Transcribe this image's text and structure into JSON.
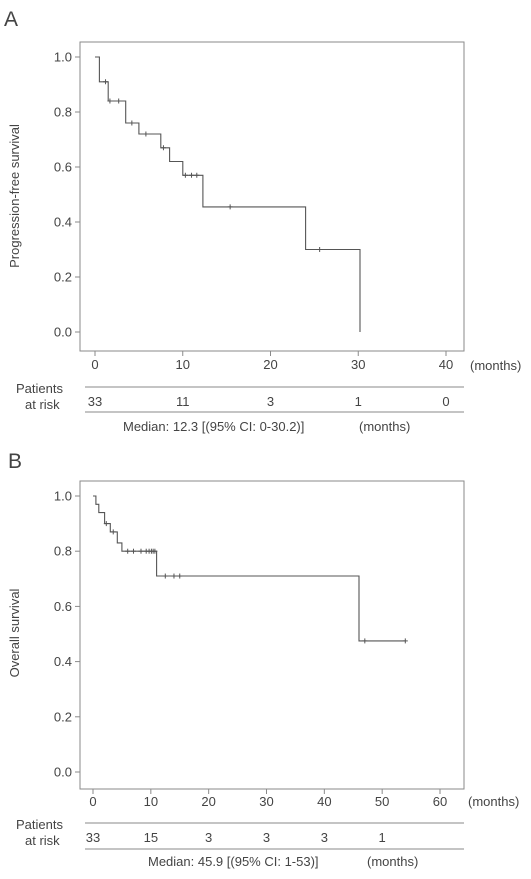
{
  "chart_data": [
    {
      "type": "line",
      "panel_label": "A",
      "ylabel": "Progression-free survival",
      "xunit": "(months)",
      "xlim": [
        0,
        40
      ],
      "ylim": [
        0,
        1
      ],
      "xticks": [
        "0",
        "10",
        "20",
        "30",
        "40"
      ],
      "yticks": [
        "0.0",
        "0.2",
        "0.4",
        "0.6",
        "0.8",
        "1.0"
      ],
      "grid": false,
      "series": [
        {
          "curve": [
            [
              0,
              1.0
            ],
            [
              0.5,
              1.0
            ],
            [
              0.5,
              0.91
            ],
            [
              1.5,
              0.91
            ],
            [
              1.5,
              0.84
            ],
            [
              3.5,
              0.84
            ],
            [
              3.5,
              0.76
            ],
            [
              5,
              0.76
            ],
            [
              5,
              0.72
            ],
            [
              7.5,
              0.72
            ],
            [
              7.5,
              0.67
            ],
            [
              8.5,
              0.67
            ],
            [
              8.5,
              0.62
            ],
            [
              10,
              0.62
            ],
            [
              10,
              0.57
            ],
            [
              12.3,
              0.57
            ],
            [
              12.3,
              0.455
            ],
            [
              24,
              0.455
            ],
            [
              24,
              0.3
            ],
            [
              30.2,
              0.3
            ],
            [
              30.2,
              0.0
            ]
          ],
          "censored": [
            [
              1.2,
              0.91
            ],
            [
              1.7,
              0.84
            ],
            [
              2.7,
              0.84
            ],
            [
              4.2,
              0.76
            ],
            [
              5.8,
              0.72
            ],
            [
              7.8,
              0.67
            ],
            [
              10.3,
              0.57
            ],
            [
              11.0,
              0.57
            ],
            [
              11.6,
              0.57
            ],
            [
              15.4,
              0.455
            ],
            [
              25.6,
              0.3
            ]
          ]
        }
      ],
      "risk_table": {
        "label_line1": "Patients",
        "label_line2": "at risk",
        "times": [
          0,
          10,
          20,
          30,
          40
        ],
        "counts": [
          "33",
          "11",
          "3",
          "1",
          "0"
        ]
      },
      "median_text": "Median: 12.3 [(95% CI: 0-30.2)]",
      "median_unit": "(months)"
    },
    {
      "type": "line",
      "panel_label": "B",
      "ylabel": "Overall survival",
      "xunit": "(months)",
      "xlim": [
        0,
        60
      ],
      "ylim": [
        0,
        1
      ],
      "xticks": [
        "0",
        "10",
        "20",
        "30",
        "40",
        "50",
        "60"
      ],
      "yticks": [
        "0.0",
        "0.2",
        "0.4",
        "0.6",
        "0.8",
        "1.0"
      ],
      "grid": false,
      "series": [
        {
          "curve": [
            [
              0,
              1.0
            ],
            [
              0.5,
              1.0
            ],
            [
              0.5,
              0.97
            ],
            [
              1,
              0.97
            ],
            [
              1,
              0.94
            ],
            [
              2,
              0.94
            ],
            [
              2,
              0.9
            ],
            [
              3,
              0.9
            ],
            [
              3,
              0.87
            ],
            [
              4.2,
              0.87
            ],
            [
              4.2,
              0.83
            ],
            [
              5,
              0.83
            ],
            [
              5,
              0.8
            ],
            [
              11,
              0.8
            ],
            [
              11,
              0.71
            ],
            [
              46,
              0.71
            ],
            [
              46,
              0.475
            ],
            [
              54,
              0.475
            ]
          ],
          "censored": [
            [
              2.3,
              0.9
            ],
            [
              3.5,
              0.87
            ],
            [
              6,
              0.8
            ],
            [
              7,
              0.8
            ],
            [
              8.3,
              0.8
            ],
            [
              9.2,
              0.8
            ],
            [
              9.7,
              0.8
            ],
            [
              10.1,
              0.8
            ],
            [
              10.4,
              0.8
            ],
            [
              10.7,
              0.8
            ],
            [
              12.5,
              0.71
            ],
            [
              14,
              0.71
            ],
            [
              15,
              0.71
            ],
            [
              47,
              0.475
            ],
            [
              54,
              0.475
            ]
          ]
        }
      ],
      "risk_table": {
        "label_line1": "Patients",
        "label_line2": "at risk",
        "times": [
          0,
          10,
          20,
          30,
          40,
          50
        ],
        "counts": [
          "33",
          "15",
          "3",
          "3",
          "3",
          "1"
        ]
      },
      "median_text": "Median: 45.9 [(95% CI: 1-53)]",
      "median_unit": "(months)"
    }
  ]
}
